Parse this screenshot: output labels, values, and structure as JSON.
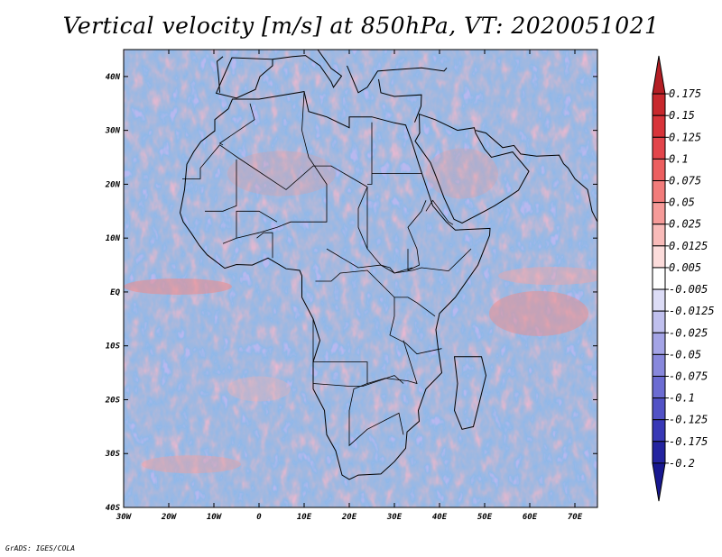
{
  "title": "Vertical velocity [m/s] at 850hPa, VT: 2020051021",
  "footer": "GrADS: IGES/COLA",
  "map": {
    "lon_range": [
      -30,
      75
    ],
    "lat_range": [
      -40,
      45
    ],
    "x_ticks": [
      {
        "lon": -30,
        "label": "30W"
      },
      {
        "lon": -20,
        "label": "20W"
      },
      {
        "lon": -10,
        "label": "10W"
      },
      {
        "lon": 0,
        "label": "0"
      },
      {
        "lon": 10,
        "label": "10E"
      },
      {
        "lon": 20,
        "label": "20E"
      },
      {
        "lon": 30,
        "label": "30E"
      },
      {
        "lon": 40,
        "label": "40E"
      },
      {
        "lon": 50,
        "label": "50E"
      },
      {
        "lon": 60,
        "label": "60E"
      },
      {
        "lon": 70,
        "label": "70E"
      }
    ],
    "y_ticks": [
      {
        "lat": 40,
        "label": "40N"
      },
      {
        "lat": 30,
        "label": "30N"
      },
      {
        "lat": 20,
        "label": "20N"
      },
      {
        "lat": 10,
        "label": "10N"
      },
      {
        "lat": 0,
        "label": "EQ"
      },
      {
        "lat": -10,
        "label": "10S"
      },
      {
        "lat": -20,
        "label": "20S"
      },
      {
        "lat": -30,
        "label": "30S"
      },
      {
        "lat": -40,
        "label": "40S"
      }
    ]
  },
  "colorbar": {
    "levels": [
      "0.175",
      "0.15",
      "0.125",
      "0.1",
      "0.075",
      "0.05",
      "0.025",
      "0.0125",
      "0.005",
      "-0.005",
      "-0.0125",
      "-0.025",
      "-0.05",
      "-0.075",
      "-0.1",
      "-0.125",
      "-0.175",
      "-0.2"
    ],
    "colors": [
      "#b41e24",
      "#c8282d",
      "#d8343a",
      "#e3454b",
      "#ec5f60",
      "#f27c7b",
      "#f69b99",
      "#f9bbb9",
      "#fcdcdb",
      "#ffffff",
      "#dcdcf6",
      "#c0c0ee",
      "#a4a4e6",
      "#8888dc",
      "#6c6cd2",
      "#5252c6",
      "#3838b6",
      "#2424a0",
      "#181890"
    ]
  },
  "chart_data": {
    "type": "heatmap",
    "title": "Vertical velocity [m/s] at 850hPa, VT: 2020051021",
    "variable": "Vertical velocity",
    "units": "m/s",
    "level": "850hPa",
    "valid_time": "2020051021",
    "x_range": [
      -30,
      75
    ],
    "y_range": [
      -40,
      45
    ],
    "xlabel": "",
    "ylabel": "",
    "colorbar_levels": [
      0.175,
      0.15,
      0.125,
      0.1,
      0.075,
      0.05,
      0.025,
      0.0125,
      0.005,
      -0.005,
      -0.0125,
      -0.025,
      -0.05,
      -0.075,
      -0.1,
      -0.125,
      -0.175,
      -0.2
    ],
    "colorbar_extend": "both"
  }
}
